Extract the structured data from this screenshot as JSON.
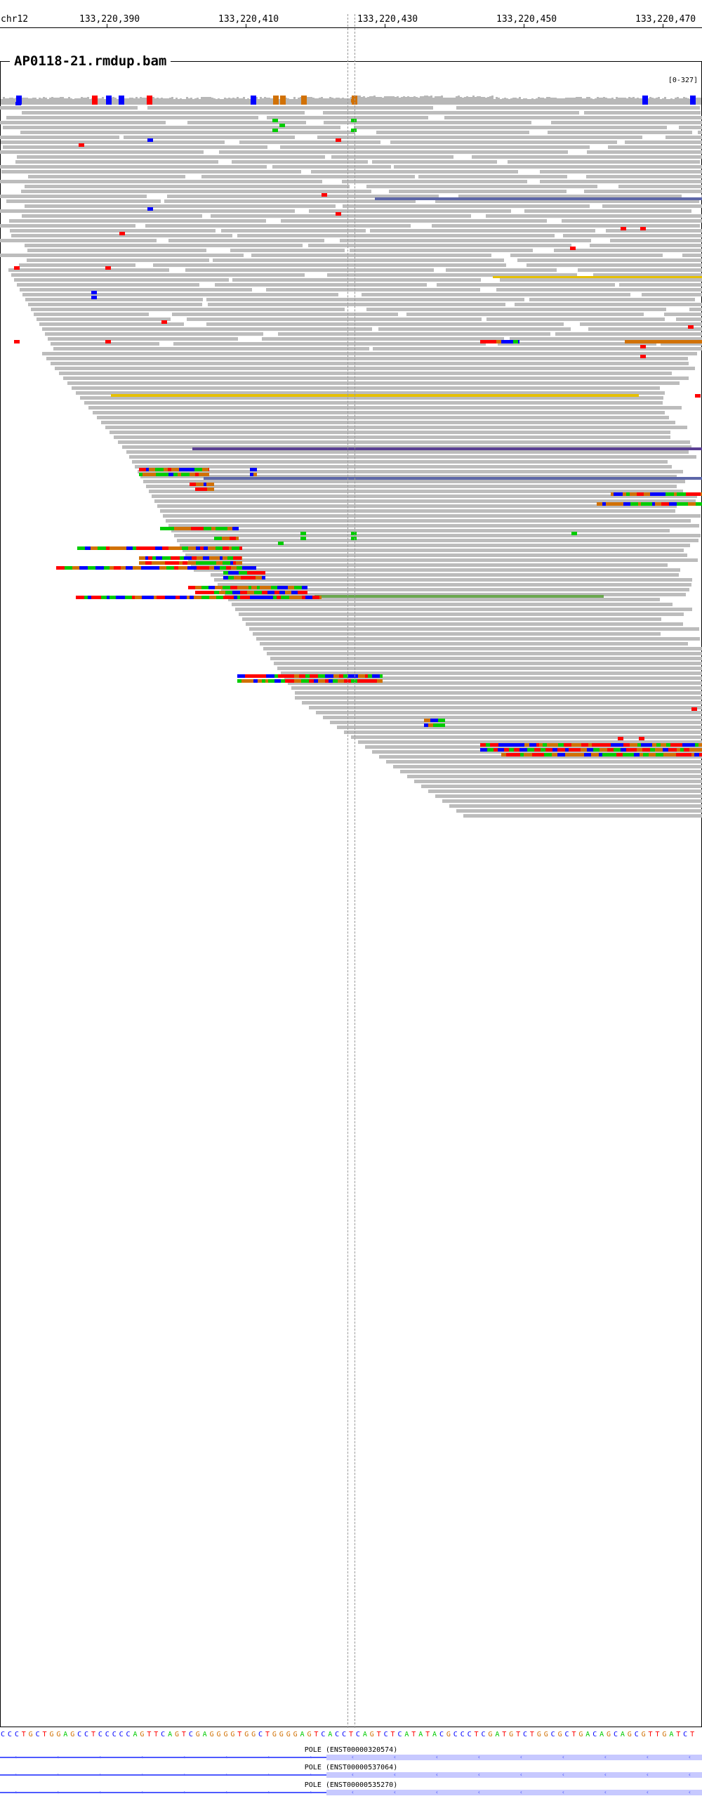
{
  "ruler": {
    "chrom": "chr12",
    "positions": [
      "133,220,390",
      "133,220,410",
      "133,220,430",
      "133,220,450",
      "133,220,470"
    ]
  },
  "track": {
    "title": "AP0118-21.rmdup.bam",
    "range": "[0-327]"
  },
  "colors": {
    "read": "#bcbcbc",
    "A": "#00cc00",
    "C": "#0000ff",
    "G": "#d17105",
    "T": "#ff0000",
    "insertion": "#5a3f93",
    "long_insert": "#5d67a8",
    "yellow": "#e6c000",
    "background": "#ffffff"
  },
  "sequence": "CCCTGCTGGAGCCTCCCCCAGTTCAGTCGAGGGGTGGCTGGGGAGTCACCTCAGTCTCATATACGCCCTCGATGTCTGGCGCTGACAGCAGCGTTGATCT",
  "transcripts": [
    {
      "name": "POLE (ENST00000320574)"
    },
    {
      "name": "POLE (ENST00000537064)"
    },
    {
      "name": "POLE (ENST00000535270)"
    }
  ]
}
